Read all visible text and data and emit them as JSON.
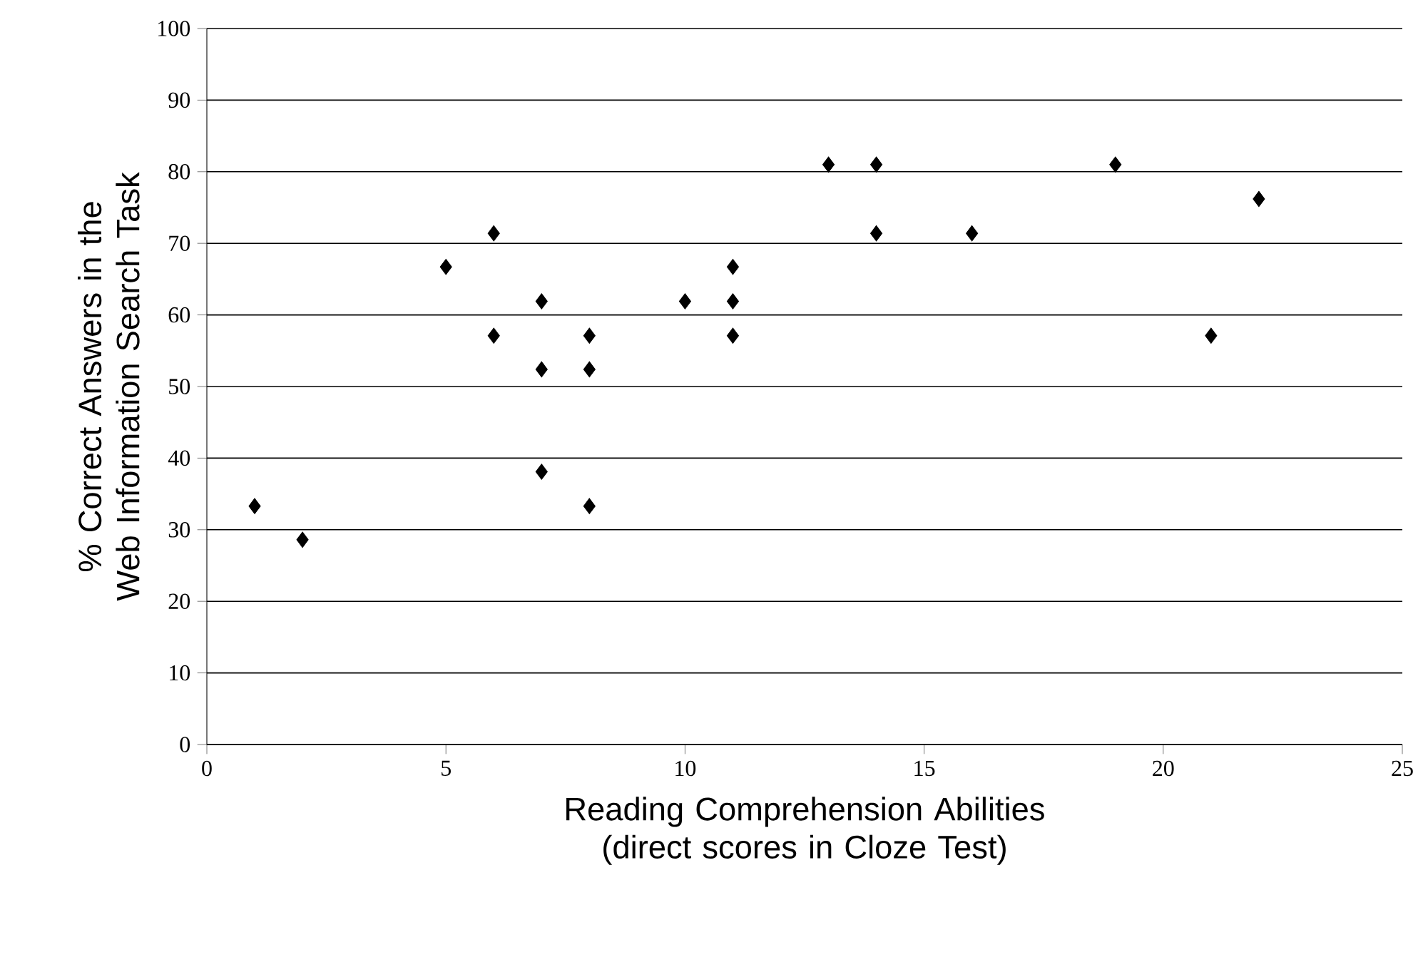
{
  "chart_data": {
    "type": "scatter",
    "xlabel": "Reading Comprehension Abilities (direct scores in Cloze Test)",
    "ylabel": "% Correct Answers in the Web Information Search Task",
    "x": [
      1,
      2,
      5,
      6,
      6,
      7,
      7,
      7,
      8,
      8,
      8,
      10,
      11,
      11,
      11,
      13,
      14,
      14,
      16,
      19,
      21,
      22
    ],
    "values": [
      33.3,
      28.6,
      66.7,
      71.4,
      57.1,
      61.9,
      52.4,
      38.1,
      57.1,
      52.4,
      33.3,
      61.9,
      66.7,
      61.9,
      57.1,
      81.0,
      81.0,
      71.4,
      71.4,
      81.0,
      57.1,
      76.2
    ],
    "color": "#000000",
    "marker": "diamond",
    "grid": "y",
    "xlim": [
      0,
      25
    ],
    "xticks": [
      0,
      5,
      10,
      15,
      20,
      25
    ],
    "ylim": [
      0,
      100
    ],
    "yticks": [
      0,
      10,
      20,
      30,
      40,
      50,
      60,
      70,
      80,
      90,
      100
    ]
  }
}
